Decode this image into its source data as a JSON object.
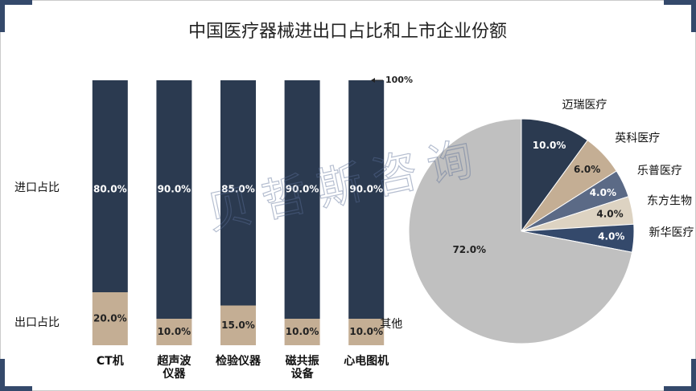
{
  "title": "中国医疗器械进出口占比和上市企业份额",
  "watermark": "贝哲斯咨询",
  "chart_data": [
    {
      "type": "stacked-bar",
      "categories": [
        "CT机",
        "超声波\n仪器",
        "检验仪器",
        "磁共振\n设备",
        "心电图机"
      ],
      "series": [
        {
          "name": "出口占比",
          "color": "#c4ae94",
          "values": [
            20,
            10,
            15,
            10,
            10
          ],
          "value_labels": [
            "20.0%",
            "10.0%",
            "15.0%",
            "10.0%",
            "10.0%"
          ]
        },
        {
          "name": "进口占比",
          "color": "#2b3a50",
          "values": [
            80,
            90,
            85,
            90,
            90
          ],
          "value_labels": [
            "80.0%",
            "90.0%",
            "85.0%",
            "90.0%",
            "90.0%"
          ]
        }
      ],
      "ylim": [
        0,
        100
      ],
      "annotation": "100%"
    },
    {
      "type": "pie",
      "categories": [
        "迈瑞医疗",
        "英科医疗",
        "乐普医疗",
        "东方生物",
        "新华医疗",
        "其他"
      ],
      "values": [
        10,
        6,
        4,
        4,
        4,
        72
      ],
      "value_labels": [
        "10.0%",
        "6.0%",
        "4.0%",
        "4.0%",
        "4.0%",
        "72.0%"
      ],
      "colors": [
        "#2b3a50",
        "#c4ae94",
        "#5b6a86",
        "#ddd3c2",
        "#34496b",
        "#c0c0c0"
      ]
    }
  ]
}
